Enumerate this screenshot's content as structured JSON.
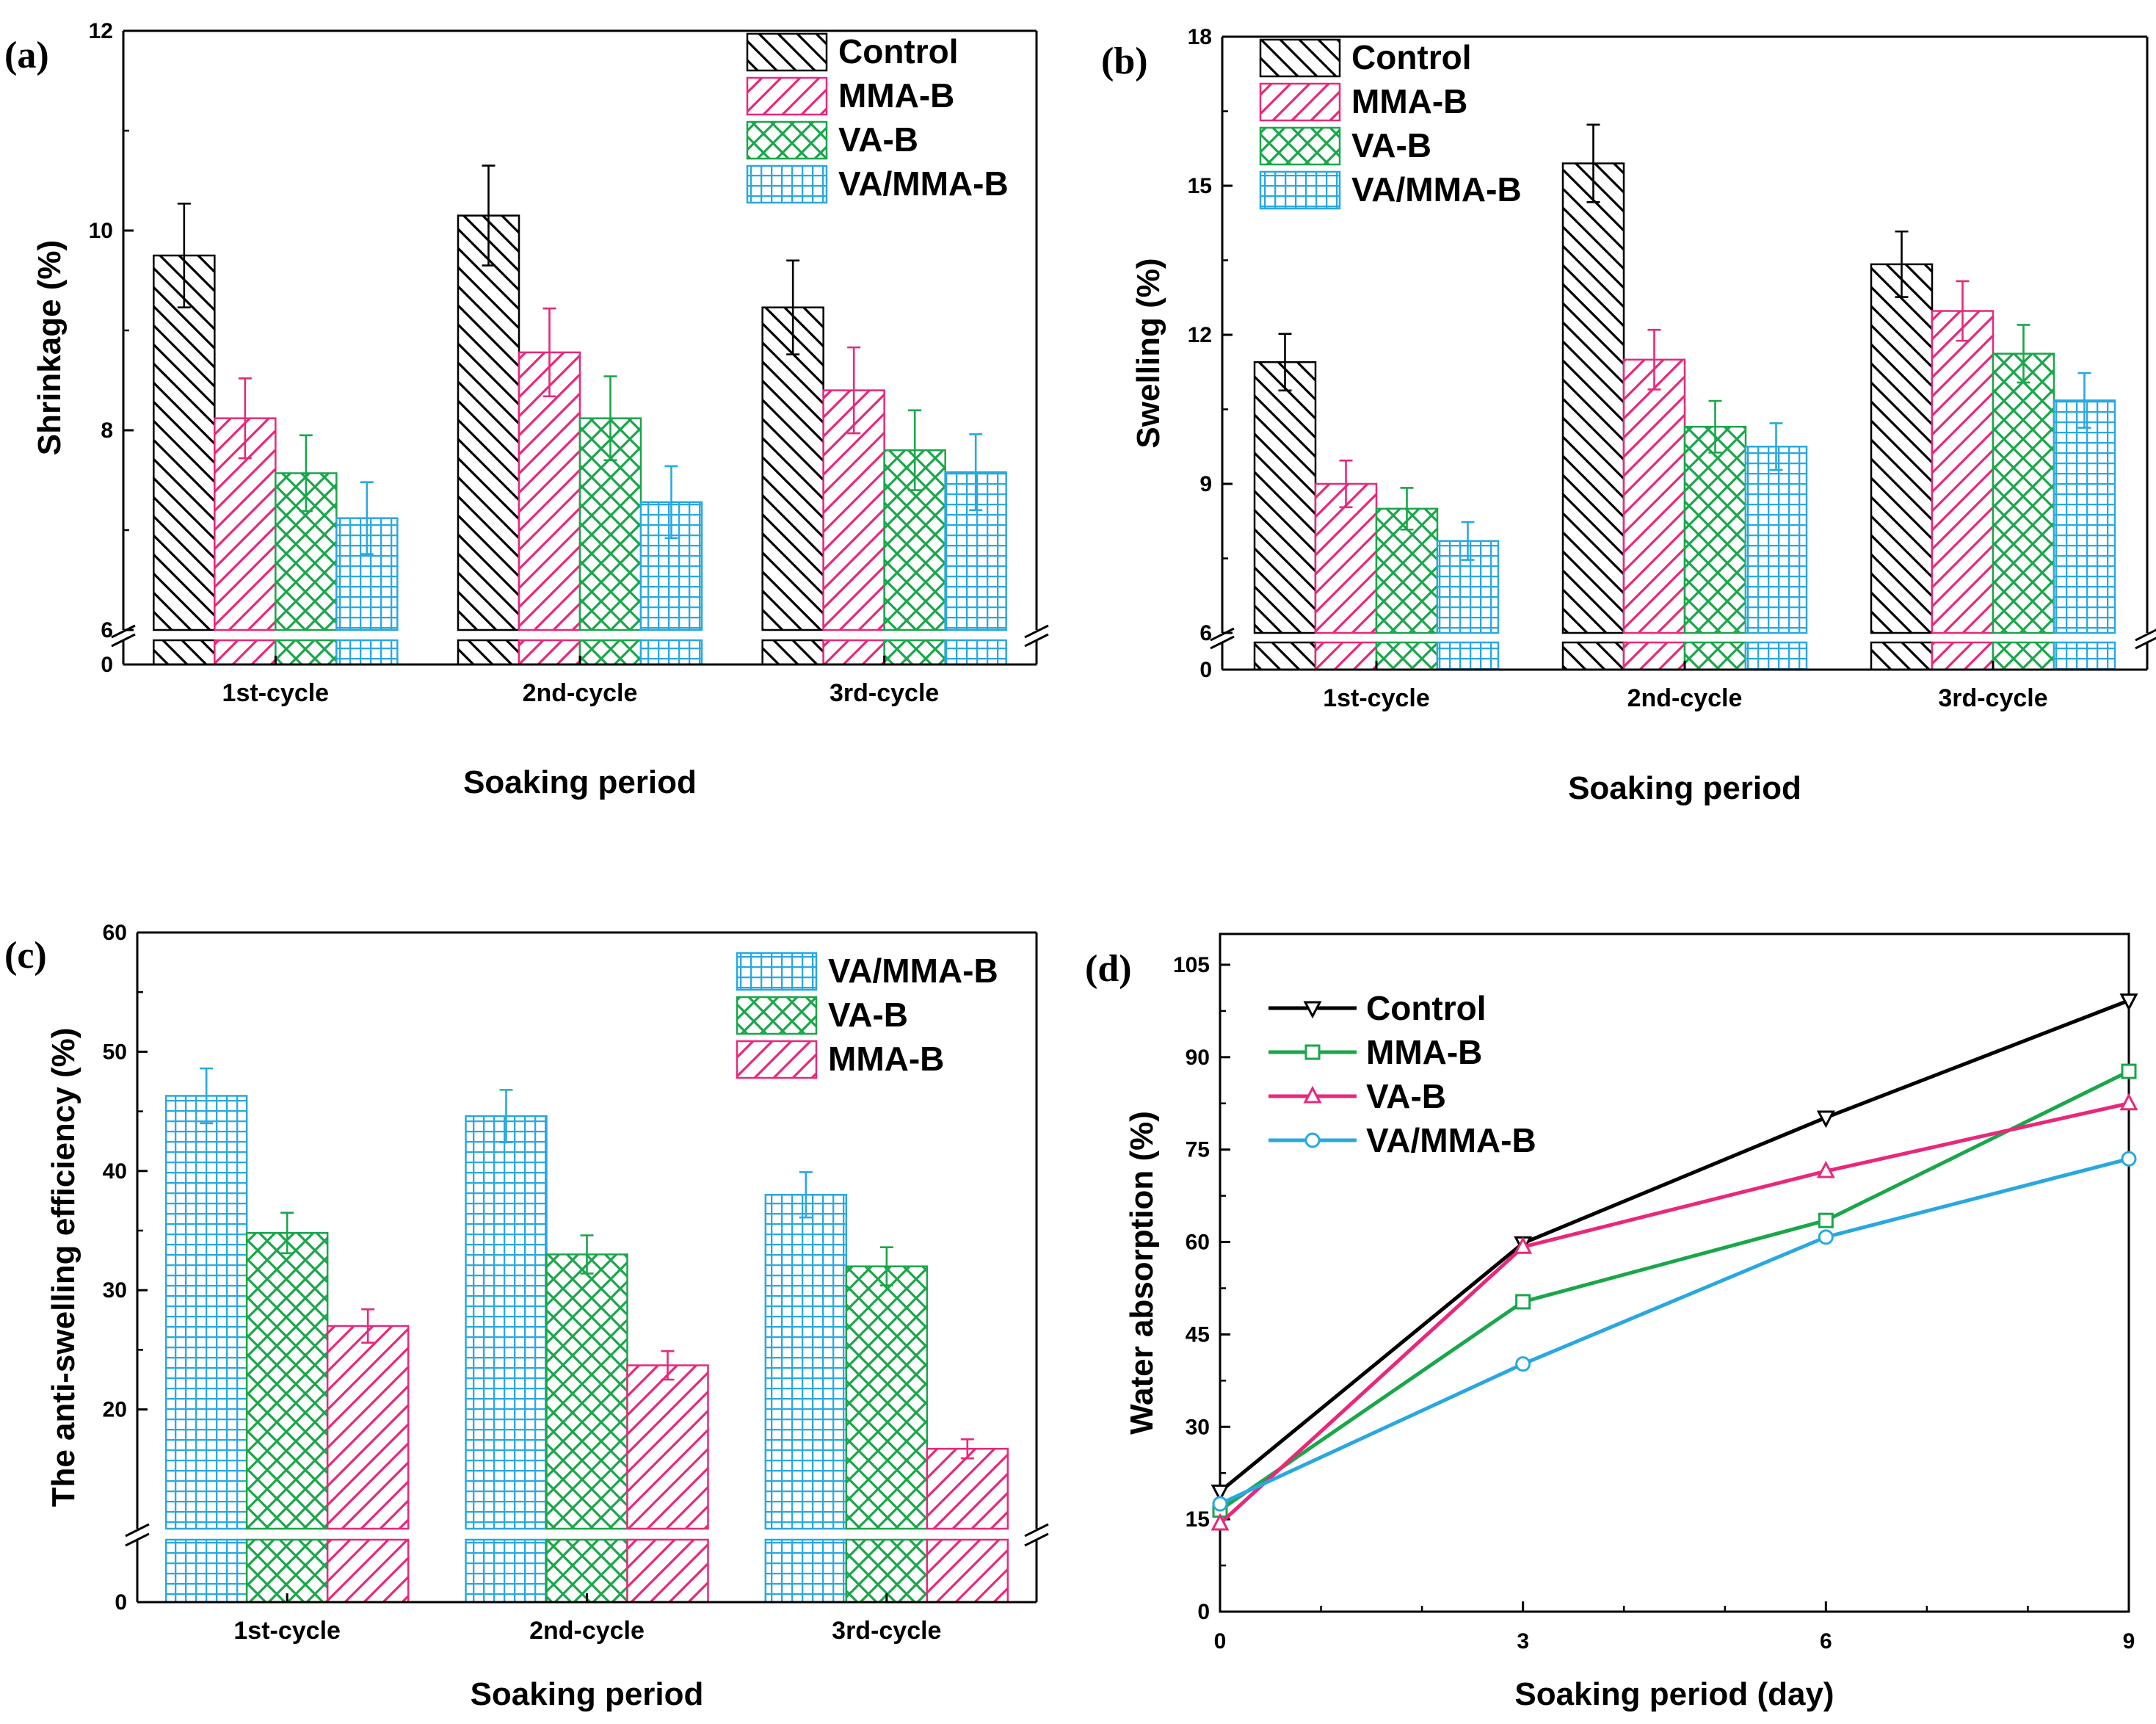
{
  "chart_data": [
    {
      "type": "bar",
      "panel_label": "(a)",
      "title": "",
      "xlabel": "Soaking period",
      "ylabel": "Shrinkage (%)",
      "categories": [
        "1st-cycle",
        "2nd-cycle",
        "3rd-cycle"
      ],
      "ylim": [
        6,
        12
      ],
      "yticks": [
        "6",
        "8",
        "10",
        "12"
      ],
      "axis_break": {
        "lower_tick": "0"
      },
      "legend_position": "top-right",
      "series": [
        {
          "name": "Control",
          "pattern": "back-diagonal",
          "color": "#000000",
          "values": [
            9.75,
            10.15,
            9.23
          ],
          "errors": [
            0.52,
            0.5,
            0.47
          ]
        },
        {
          "name": "MMA-B",
          "pattern": "forward-diagonal",
          "color": "#e8287a",
          "values": [
            8.12,
            8.78,
            8.4
          ],
          "errors": [
            0.4,
            0.44,
            0.43
          ]
        },
        {
          "name": "VA-B",
          "pattern": "crosshatch",
          "color": "#1aa64a",
          "values": [
            7.57,
            8.12,
            7.8
          ],
          "errors": [
            0.38,
            0.42,
            0.4
          ]
        },
        {
          "name": "VA/MMA-B",
          "pattern": "grid",
          "color": "#29a8e0",
          "values": [
            7.12,
            7.28,
            7.58
          ],
          "errors": [
            0.36,
            0.36,
            0.38
          ]
        }
      ]
    },
    {
      "type": "bar",
      "panel_label": "(b)",
      "title": "",
      "xlabel": "Soaking period",
      "ylabel": "Swelling (%)",
      "categories": [
        "1st-cycle",
        "2nd-cycle",
        "3rd-cycle"
      ],
      "ylim": [
        6,
        18
      ],
      "yticks": [
        "6",
        "9",
        "12",
        "15",
        "18"
      ],
      "axis_break": {
        "lower_tick": "0"
      },
      "legend_position": "top-left",
      "series": [
        {
          "name": "Control",
          "pattern": "back-diagonal",
          "color": "#000000",
          "values": [
            11.45,
            15.45,
            13.42
          ],
          "errors": [
            0.57,
            0.78,
            0.66
          ]
        },
        {
          "name": "MMA-B",
          "pattern": "forward-diagonal",
          "color": "#e8287a",
          "values": [
            9.0,
            11.5,
            12.48
          ],
          "errors": [
            0.47,
            0.6,
            0.6
          ]
        },
        {
          "name": "VA-B",
          "pattern": "crosshatch",
          "color": "#1aa64a",
          "values": [
            8.5,
            10.15,
            11.62
          ],
          "errors": [
            0.42,
            0.52,
            0.58
          ]
        },
        {
          "name": "VA/MMA-B",
          "pattern": "grid",
          "color": "#29a8e0",
          "values": [
            7.85,
            9.75,
            10.68
          ],
          "errors": [
            0.38,
            0.47,
            0.55
          ]
        }
      ]
    },
    {
      "type": "bar",
      "panel_label": "(c)",
      "title": "",
      "xlabel": "Soaking period",
      "ylabel": "The anti-swelling efficiency (%)",
      "categories": [
        "1st-cycle",
        "2nd-cycle",
        "3rd-cycle"
      ],
      "ylim": [
        10,
        60
      ],
      "yticks": [
        "20",
        "30",
        "40",
        "50",
        "60"
      ],
      "axis_break": {
        "lower_tick": "0"
      },
      "legend_position": "top-right",
      "series": [
        {
          "name": "VA/MMA-B",
          "pattern": "grid",
          "color": "#29a8e0",
          "values": [
            46.3,
            44.6,
            38.0
          ],
          "errors": [
            2.3,
            2.2,
            1.9
          ]
        },
        {
          "name": "VA-B",
          "pattern": "crosshatch",
          "color": "#1aa64a",
          "values": [
            34.8,
            33.0,
            32.0
          ],
          "errors": [
            1.7,
            1.6,
            1.6
          ]
        },
        {
          "name": "MMA-B",
          "pattern": "forward-diagonal",
          "color": "#e8287a",
          "values": [
            27.0,
            23.7,
            16.7
          ],
          "errors": [
            1.4,
            1.2,
            0.8
          ]
        }
      ]
    },
    {
      "type": "line",
      "panel_label": "(d)",
      "title": "",
      "xlabel": "Soaking period (day)",
      "ylabel": "Water absorption (%)",
      "x": [
        0,
        3,
        6,
        9
      ],
      "xlim": [
        0,
        9
      ],
      "ylim": [
        0,
        110
      ],
      "xticks": [
        "0",
        "3",
        "6",
        "9"
      ],
      "yticks": [
        "0",
        "15",
        "30",
        "45",
        "60",
        "75",
        "90",
        "105"
      ],
      "legend_position": "top-left",
      "series": [
        {
          "name": "Control",
          "marker": "triangle-down",
          "color": "#000000",
          "values": [
            19.5,
            59.8,
            80.2,
            99.2
          ]
        },
        {
          "name": "MMA-B",
          "marker": "square",
          "color": "#1aa64a",
          "values": [
            16.5,
            50.3,
            63.5,
            87.7
          ]
        },
        {
          "name": "VA-B",
          "marker": "triangle-up",
          "color": "#e8287a",
          "values": [
            14.3,
            59.2,
            71.5,
            82.5
          ]
        },
        {
          "name": "VA/MMA-B",
          "marker": "circle",
          "color": "#29a8e0",
          "values": [
            17.5,
            40.2,
            60.8,
            73.5
          ]
        }
      ]
    }
  ]
}
